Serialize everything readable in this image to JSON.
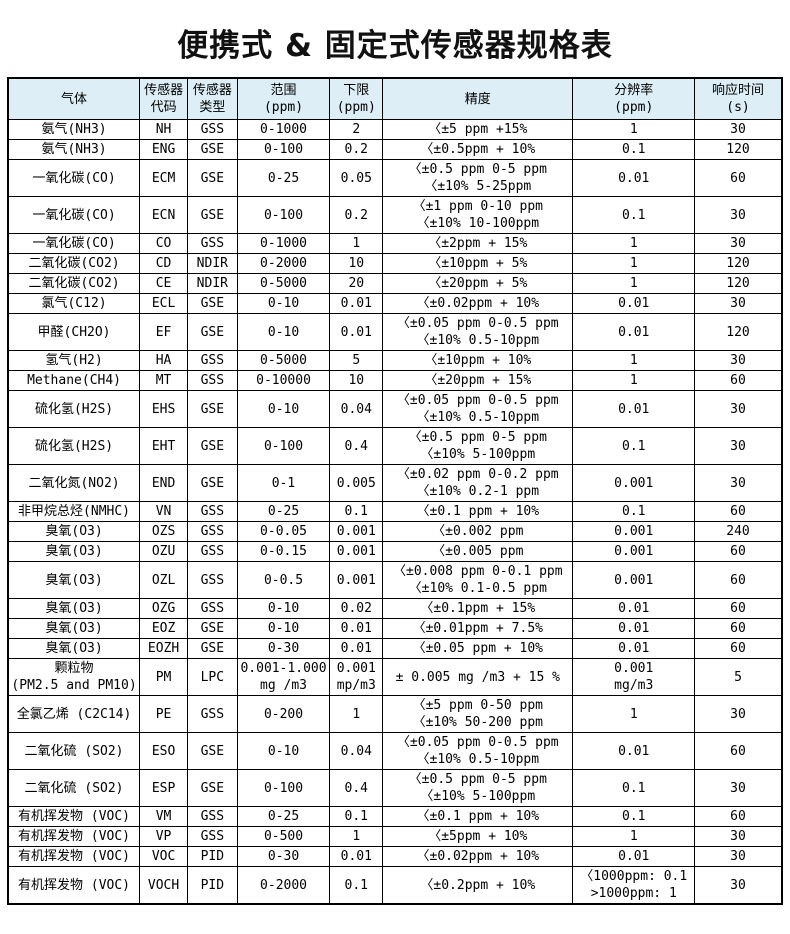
{
  "title": "便携式 & 固定式传感器规格表",
  "colors": {
    "header_background": "#ddeef7",
    "border": "#000000",
    "text": "#000000"
  },
  "table": {
    "column_names": [
      "gas",
      "sensor-code",
      "sensor-type",
      "range-ppm",
      "lower-limit-ppm",
      "accuracy",
      "resolution-ppm",
      "response-time-s"
    ],
    "headers": [
      "气体",
      "传感器\n代码",
      "传感器\n类型",
      "范围\n(ppm)",
      "下限\n(ppm)",
      "精度",
      "分辨率\n(ppm)",
      "响应时间\n(s)"
    ],
    "rows": [
      [
        "氨气(NH3)",
        "NH",
        "GSS",
        "0-1000",
        "2",
        "〈±5 ppm +15%",
        "1",
        "30"
      ],
      [
        "氨气(NH3)",
        "ENG",
        "GSE",
        "0-100",
        "0.2",
        "〈±0.5ppm + 10%",
        "0.1",
        "120"
      ],
      [
        "一氧化碳(CO)",
        "ECM",
        "GSE",
        "0-25",
        "0.05",
        "〈±0.5 ppm 0-5 ppm\n〈±10% 5-25ppm",
        "0.01",
        "60"
      ],
      [
        "一氧化碳(CO)",
        "ECN",
        "GSE",
        "0-100",
        "0.2",
        "〈±1 ppm 0-10 ppm\n〈±10% 10-100ppm",
        "0.1",
        "30"
      ],
      [
        "一氧化碳(CO)",
        "CO",
        "GSS",
        "0-1000",
        "1",
        "〈±2ppm + 15%",
        "1",
        "30"
      ],
      [
        "二氧化碳(CO2)",
        "CD",
        "NDIR",
        "0-2000",
        "10",
        "〈±10ppm + 5%",
        "1",
        "120"
      ],
      [
        "二氧化碳(CO2)",
        "CE",
        "NDIR",
        "0-5000",
        "20",
        "〈±20ppm + 5%",
        "1",
        "120"
      ],
      [
        "氯气(C12)",
        "ECL",
        "GSE",
        "0-10",
        "0.01",
        "〈±0.02ppm + 10%",
        "0.01",
        "30"
      ],
      [
        "甲醛(CH2O)",
        "EF",
        "GSE",
        "0-10",
        "0.01",
        "〈±0.05 ppm 0-0.5 ppm\n〈±10% 0.5-10ppm",
        "0.01",
        "120"
      ],
      [
        "氢气(H2)",
        "HA",
        "GSS",
        "0-5000",
        "5",
        "〈±10ppm + 10%",
        "1",
        "30"
      ],
      [
        "Methane(CH4)",
        "MT",
        "GSS",
        "0-10000",
        "10",
        "〈±20ppm + 15%",
        "1",
        "60"
      ],
      [
        "硫化氢(H2S)",
        "EHS",
        "GSE",
        "0-10",
        "0.04",
        "〈±0.05 ppm 0-0.5 ppm\n〈±10% 0.5-10ppm",
        "0.01",
        "30"
      ],
      [
        "硫化氢(H2S)",
        "EHT",
        "GSE",
        "0-100",
        "0.4",
        "〈±0.5 ppm 0-5 ppm\n〈±10% 5-100ppm",
        "0.1",
        "30"
      ],
      [
        "二氧化氮(NO2)",
        "END",
        "GSE",
        "0-1",
        "0.005",
        "〈±0.02 ppm 0-0.2 ppm\n〈±10% 0.2-1 ppm",
        "0.001",
        "30"
      ],
      [
        "非甲烷总烃(NMHC)",
        "VN",
        "GSS",
        "0-25",
        "0.1",
        "〈±0.1 ppm + 10%",
        "0.1",
        "60"
      ],
      [
        "臭氧(O3)",
        "OZS",
        "GSS",
        "0-0.05",
        "0.001",
        "〈±0.002 ppm",
        "0.001",
        "240"
      ],
      [
        "臭氧(O3)",
        "OZU",
        "GSS",
        "0-0.15",
        "0.001",
        "〈±0.005 ppm",
        "0.001",
        "60"
      ],
      [
        "臭氧(O3)",
        "OZL",
        "GSS",
        "0-0.5",
        "0.001",
        "〈±0.008 ppm 0-0.1 ppm\n〈±10% 0.1-0.5 ppm",
        "0.001",
        "60"
      ],
      [
        "臭氧(O3)",
        "OZG",
        "GSS",
        "0-10",
        "0.02",
        "〈±0.1ppm + 15%",
        "0.01",
        "60"
      ],
      [
        "臭氧(O3)",
        "EOZ",
        "GSE",
        "0-10",
        "0.01",
        "〈±0.01ppm + 7.5%",
        "0.01",
        "60"
      ],
      [
        "臭氧(O3)",
        "EOZH",
        "GSE",
        "0-30",
        "0.01",
        "〈±0.05 ppm + 10%",
        "0.01",
        "60"
      ],
      [
        "颗粒物\n(PM2.5 and PM10)",
        "PM",
        "LPC",
        "0.001-1.000\nmg /m3",
        "0.001\nmp/m3",
        "± 0.005 mg /m3 + 15 %",
        "0.001\nmg/m3",
        "5"
      ],
      [
        "全氯乙烯 (C2C14)",
        "PE",
        "GSS",
        "0-200",
        "1",
        "〈±5 ppm 0-50 ppm\n〈±10% 50-200 ppm",
        "1",
        "30"
      ],
      [
        "二氧化硫 (SO2)",
        "ESO",
        "GSE",
        "0-10",
        "0.04",
        "〈±0.05 ppm 0-0.5 ppm\n〈±10% 0.5-10ppm",
        "0.01",
        "60"
      ],
      [
        "二氧化硫 (SO2)",
        "ESP",
        "GSE",
        "0-100",
        "0.4",
        "〈±0.5 ppm 0-5 ppm\n〈±10% 5-100ppm",
        "0.1",
        "30"
      ],
      [
        "有机挥发物 (VOC)",
        "VM",
        "GSS",
        "0-25",
        "0.1",
        "〈±0.1 ppm + 10%",
        "0.1",
        "60"
      ],
      [
        "有机挥发物 (VOC)",
        "VP",
        "GSS",
        "0-500",
        "1",
        "〈±5ppm + 10%",
        "1",
        "30"
      ],
      [
        "有机挥发物 (VOC)",
        "VOC",
        "PID",
        "0-30",
        "0.01",
        "〈±0.02ppm + 10%",
        "0.01",
        "30"
      ],
      [
        "有机挥发物 (VOC)",
        "VOCH",
        "PID",
        "0-2000",
        "0.1",
        "〈±0.2ppm + 10%",
        "〈1000ppm: 0.1\n>1000ppm: 1",
        "30"
      ]
    ]
  }
}
